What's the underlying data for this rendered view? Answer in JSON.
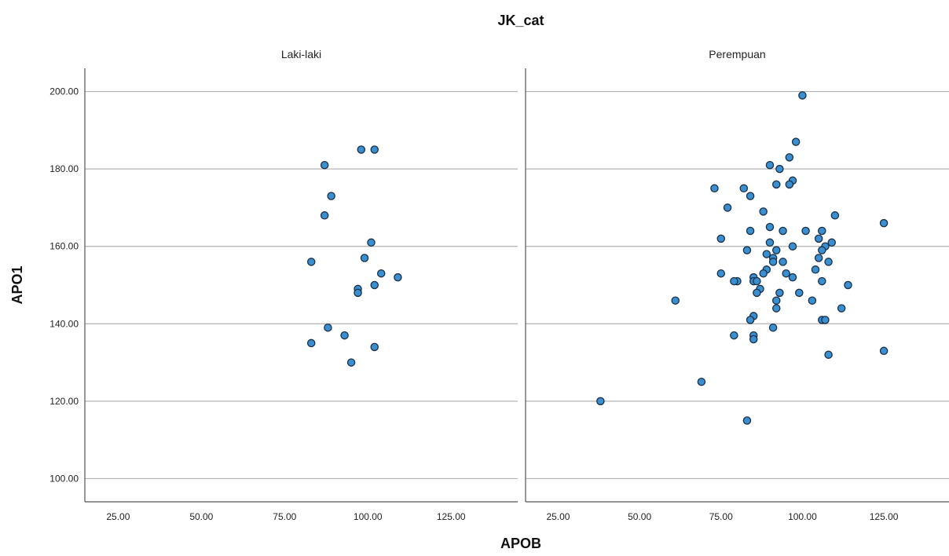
{
  "chart_data": {
    "type": "scatter",
    "title": "JK_cat",
    "xlabel": "APOB",
    "ylabel": "APO1",
    "xlim": [
      15,
      145
    ],
    "ylim": [
      94,
      206
    ],
    "x_ticks": [
      "25.00",
      "50.00",
      "75.00",
      "100.00",
      "125.00"
    ],
    "x_tick_values": [
      25,
      50,
      75,
      100,
      125
    ],
    "y_ticks": [
      "100.00",
      "120.00",
      "140.00",
      "160.00",
      "180.00",
      "200.00"
    ],
    "y_tick_values": [
      100,
      120,
      140,
      160,
      180,
      200
    ],
    "grid": "horizontal",
    "marker_color": "#3a8fd0",
    "marker_edge_color": "#1a2f47",
    "panels": [
      {
        "name": "Laki-laki",
        "points": [
          [
            98,
            185
          ],
          [
            102,
            185
          ],
          [
            87,
            181
          ],
          [
            89,
            173
          ],
          [
            87,
            168
          ],
          [
            101,
            161
          ],
          [
            83,
            156
          ],
          [
            99,
            157
          ],
          [
            104,
            153
          ],
          [
            109,
            152
          ],
          [
            97,
            149
          ],
          [
            97,
            148
          ],
          [
            102,
            150
          ],
          [
            88,
            139
          ],
          [
            93,
            137
          ],
          [
            83,
            135
          ],
          [
            102,
            134
          ],
          [
            95,
            130
          ]
        ]
      },
      {
        "name": "Perempuan",
        "points": [
          [
            100,
            199
          ],
          [
            98,
            187
          ],
          [
            96,
            183
          ],
          [
            90,
            181
          ],
          [
            93,
            180
          ],
          [
            97,
            177
          ],
          [
            96,
            176
          ],
          [
            92,
            176
          ],
          [
            73,
            175
          ],
          [
            82,
            175
          ],
          [
            84,
            173
          ],
          [
            77,
            170
          ],
          [
            88,
            169
          ],
          [
            110,
            168
          ],
          [
            125,
            166
          ],
          [
            90,
            165
          ],
          [
            94,
            164
          ],
          [
            101,
            164
          ],
          [
            106,
            164
          ],
          [
            84,
            164
          ],
          [
            75,
            162
          ],
          [
            105,
            162
          ],
          [
            90,
            161
          ],
          [
            109,
            161
          ],
          [
            97,
            160
          ],
          [
            107,
            160
          ],
          [
            83,
            159
          ],
          [
            92,
            159
          ],
          [
            106,
            159
          ],
          [
            89,
            158
          ],
          [
            91,
            157
          ],
          [
            105,
            157
          ],
          [
            94,
            156
          ],
          [
            108,
            156
          ],
          [
            91,
            156
          ],
          [
            104,
            154
          ],
          [
            89,
            154
          ],
          [
            88,
            153
          ],
          [
            75,
            153
          ],
          [
            95,
            153
          ],
          [
            85,
            152
          ],
          [
            97,
            152
          ],
          [
            85,
            151
          ],
          [
            80,
            151
          ],
          [
            79,
            151
          ],
          [
            106,
            151
          ],
          [
            86,
            151
          ],
          [
            114,
            150
          ],
          [
            87,
            149
          ],
          [
            86,
            148
          ],
          [
            93,
            148
          ],
          [
            99,
            148
          ],
          [
            61,
            146
          ],
          [
            92,
            146
          ],
          [
            103,
            146
          ],
          [
            92,
            144
          ],
          [
            112,
            144
          ],
          [
            85,
            142
          ],
          [
            84,
            141
          ],
          [
            106,
            141
          ],
          [
            107,
            141
          ],
          [
            91,
            139
          ],
          [
            79,
            137
          ],
          [
            85,
            137
          ],
          [
            85,
            136
          ],
          [
            125,
            133
          ],
          [
            108,
            132
          ],
          [
            69,
            125
          ],
          [
            38,
            120
          ],
          [
            83,
            115
          ]
        ]
      }
    ]
  }
}
